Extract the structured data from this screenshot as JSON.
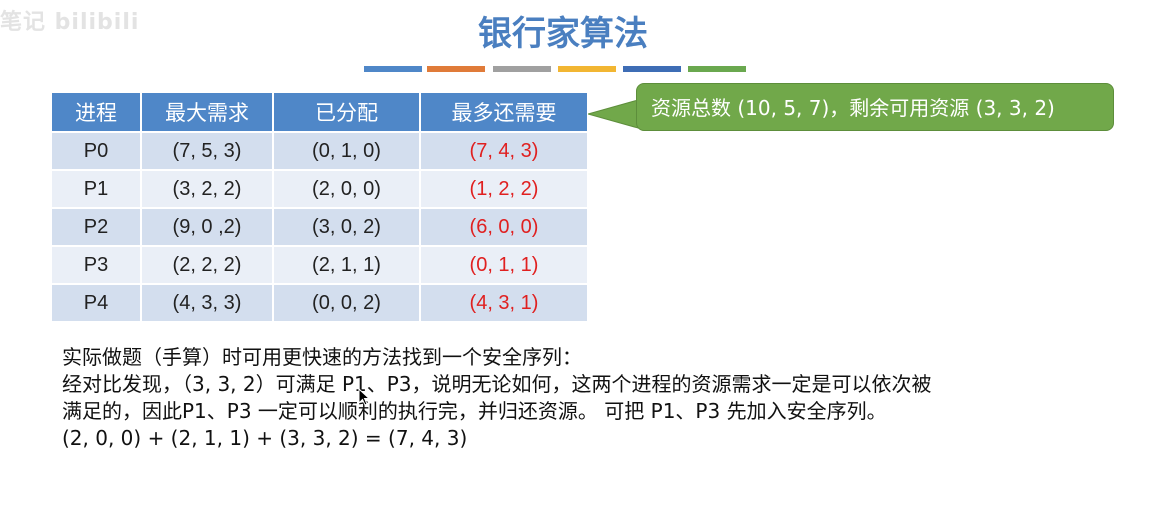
{
  "watermark": "笔记 bilibili",
  "title": "银行家算法",
  "color_bar": [
    "#4f87c8",
    "#e07b39",
    "#a0a0a0",
    "#f2b632",
    "#3e6db5",
    "#6aa84f"
  ],
  "table": {
    "headers": [
      "进程",
      "最大需求",
      "已分配",
      "最多还需要"
    ],
    "rows": [
      {
        "proc": "P0",
        "max": "(7, 5, 3)",
        "alloc": "(0, 1, 0)",
        "need": "(7, 4, 3)"
      },
      {
        "proc": "P1",
        "max": "(3, 2, 2)",
        "alloc": "(2, 0, 0)",
        "need": "(1, 2, 2)"
      },
      {
        "proc": "P2",
        "max": "(9, 0 ,2)",
        "alloc": "(3, 0, 2)",
        "need": "(6, 0, 0)"
      },
      {
        "proc": "P3",
        "max": "(2, 2, 2)",
        "alloc": "(2, 1, 1)",
        "need": "(0, 1, 1)"
      },
      {
        "proc": "P4",
        "max": "(4, 3, 3)",
        "alloc": "(0, 0, 2)",
        "need": "(4, 3, 1)"
      }
    ]
  },
  "callout": {
    "text": "资源总数 (10, 5, 7)，剩余可用资源 (3, 3, 2)",
    "color": "#71a84a"
  },
  "notes": {
    "line1": "实际做题（手算）时可用更快速的方法找到一个安全序列：",
    "line2": "经对比发现，（3, 3, 2）可满足 P1、P3，说明无论如何，这两个进程的资源需求一定是可以依次被",
    "line3": "满足的，因此P1、P3 一定可以顺利的执行完，并归还资源。 可把 P1、P3 先加入安全序列。",
    "line4": "(2, 0, 0) + (2, 1, 1) + (3, 3, 2) = (7, 4, 3)"
  },
  "accent_colors": {
    "header": "#4f87c8",
    "need_text": "#e02020",
    "title": "#4a7fc0"
  }
}
